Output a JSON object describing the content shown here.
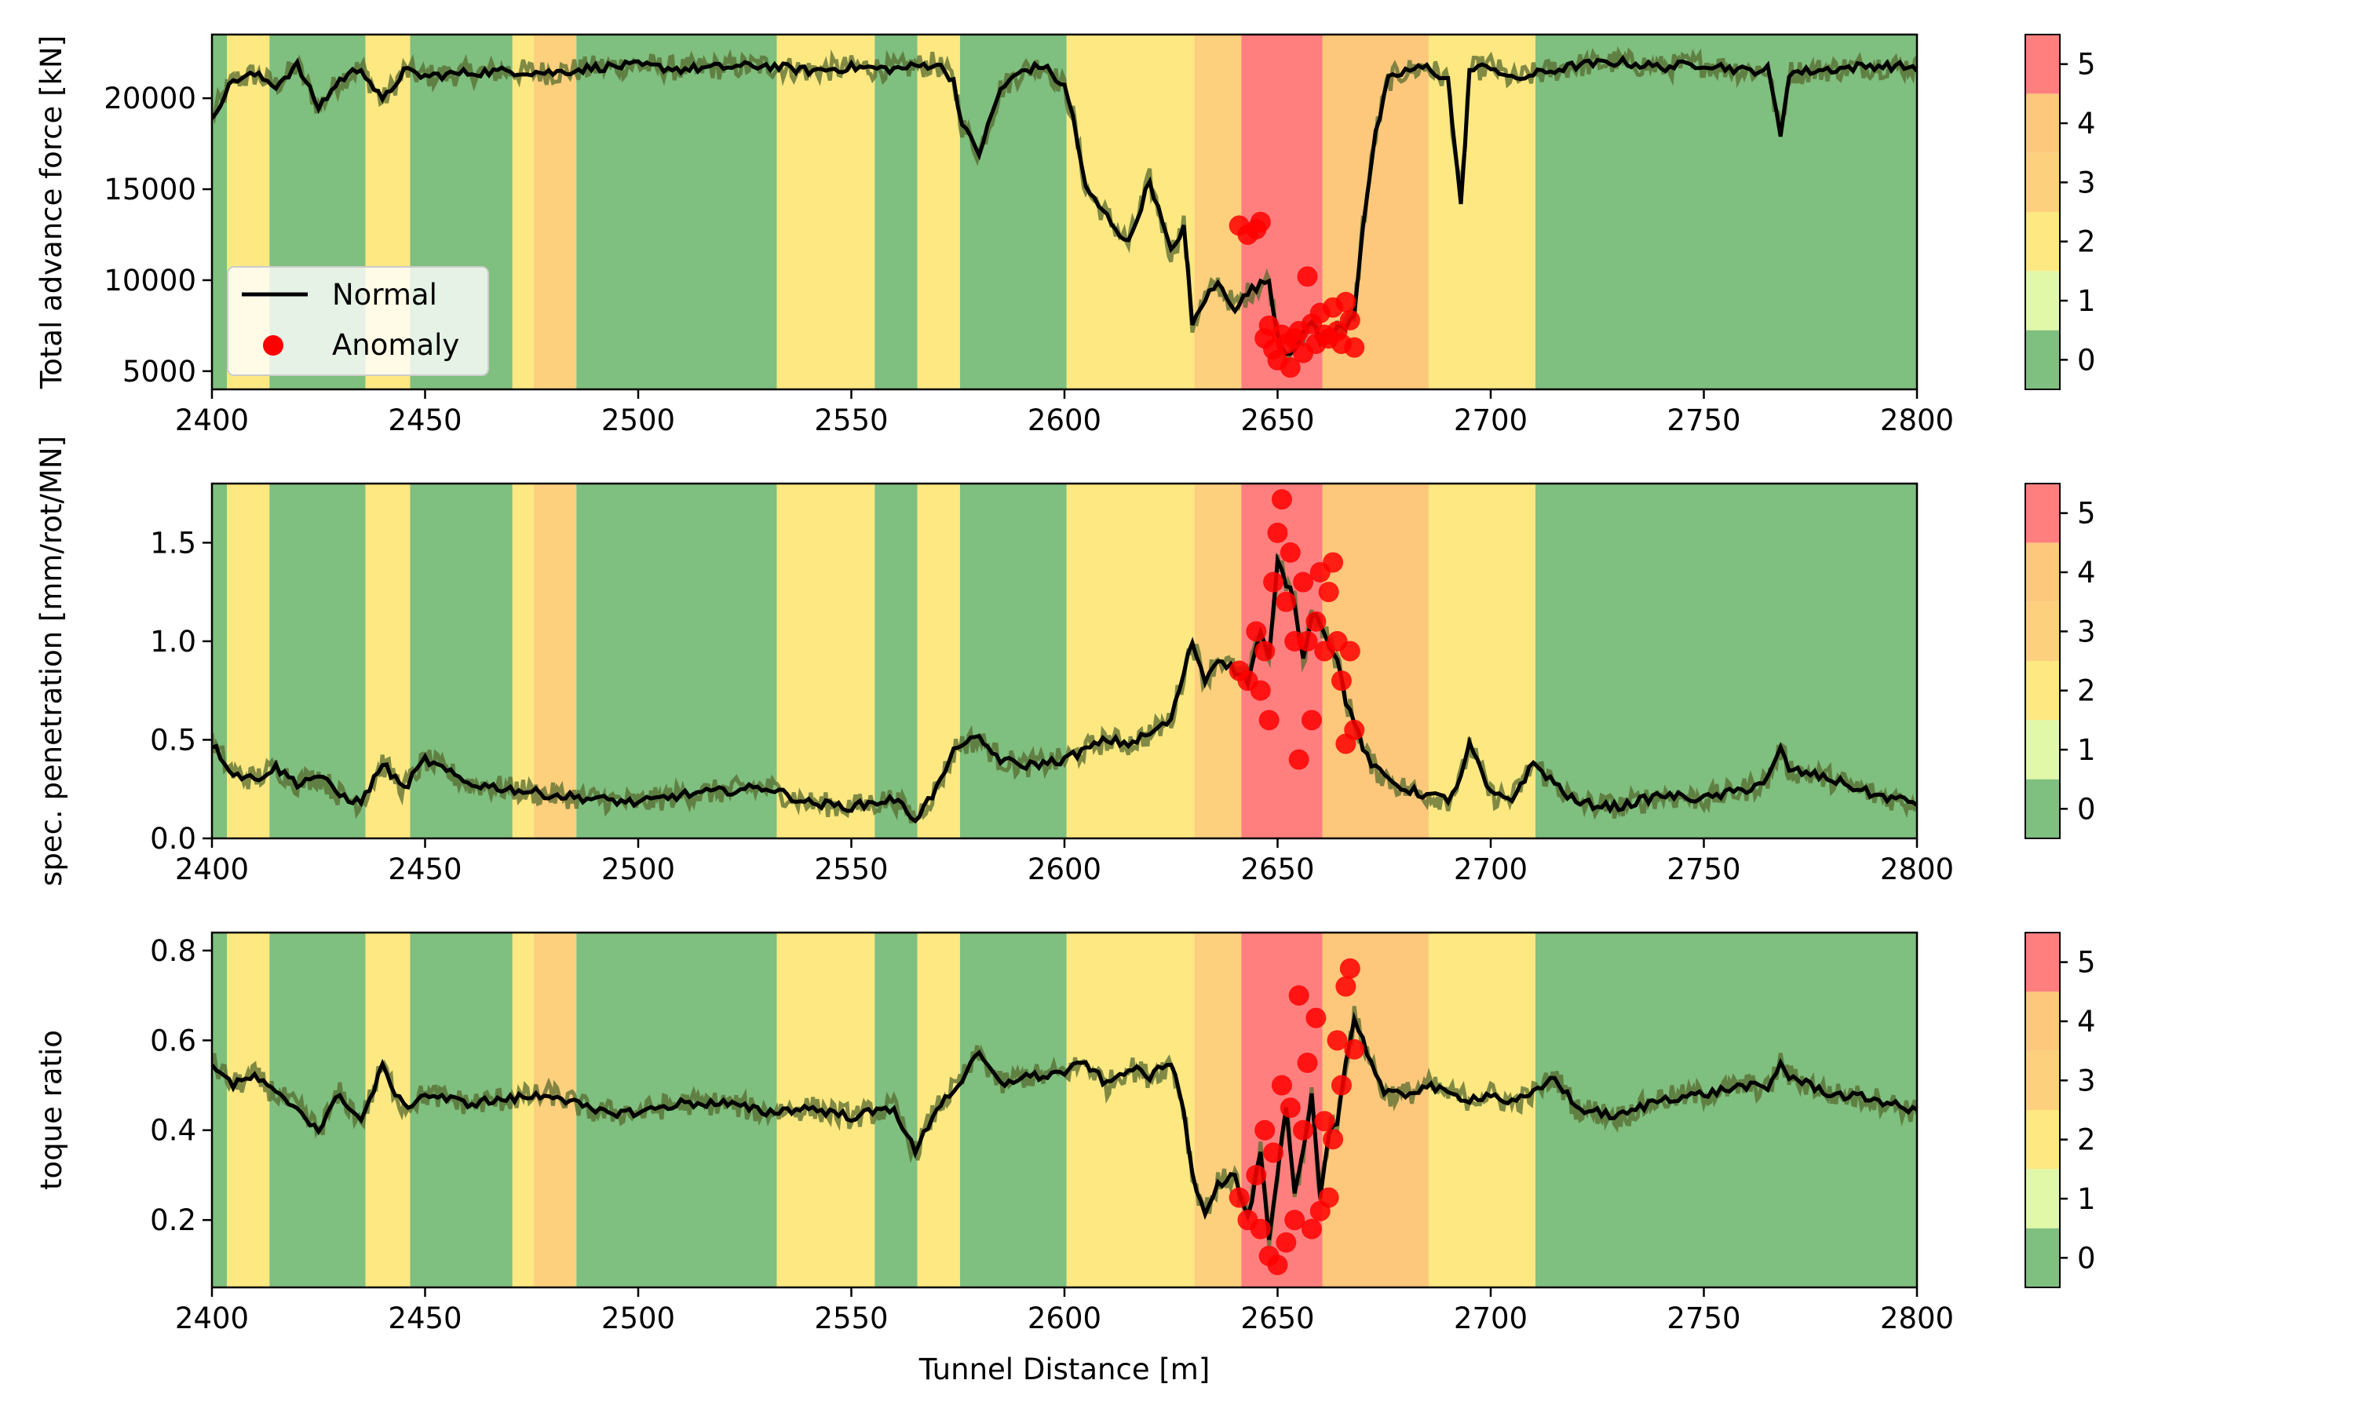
{
  "chart_data": {
    "type": "line",
    "xlabel": "Tunnel Distance [m]",
    "xlim": [
      2400,
      2800
    ],
    "x_ticks": [
      "2400",
      "2450",
      "2500",
      "2550",
      "2600",
      "2650",
      "2700",
      "2750",
      "2800"
    ],
    "legend": {
      "placement": "lower-left",
      "entries": [
        "Normal",
        "Anomaly"
      ]
    },
    "colorbar": {
      "ticks": [
        "0",
        "1",
        "2",
        "3",
        "4",
        "5"
      ],
      "colors": [
        "#7fbf7f",
        "#e0f8a8",
        "#fde882",
        "#fdd07e",
        "#fdc87c",
        "#ff7f7f"
      ]
    },
    "class_bands": [
      {
        "start": 2400,
        "end": 2403.5,
        "class": 0
      },
      {
        "start": 2403.5,
        "end": 2413.5,
        "class": 2
      },
      {
        "start": 2413.5,
        "end": 2436,
        "class": 0
      },
      {
        "start": 2436,
        "end": 2446.5,
        "class": 2
      },
      {
        "start": 2446.5,
        "end": 2470.5,
        "class": 0
      },
      {
        "start": 2470.5,
        "end": 2475.5,
        "class": 2
      },
      {
        "start": 2475.5,
        "end": 2485.5,
        "class": 3
      },
      {
        "start": 2485.5,
        "end": 2532.5,
        "class": 0
      },
      {
        "start": 2532.5,
        "end": 2555.5,
        "class": 2
      },
      {
        "start": 2555.5,
        "end": 2565.5,
        "class": 0
      },
      {
        "start": 2565.5,
        "end": 2575.5,
        "class": 2
      },
      {
        "start": 2575.5,
        "end": 2600.5,
        "class": 0
      },
      {
        "start": 2600.5,
        "end": 2630.5,
        "class": 2
      },
      {
        "start": 2630.5,
        "end": 2641.5,
        "class": 3
      },
      {
        "start": 2641.5,
        "end": 2660.5,
        "class": 5
      },
      {
        "start": 2660.5,
        "end": 2685.5,
        "class": 4
      },
      {
        "start": 2685.5,
        "end": 2710.5,
        "class": 2
      },
      {
        "start": 2710.5,
        "end": 2800,
        "class": 0
      }
    ],
    "panels": [
      {
        "ylabel": "Total advance force [kN]",
        "ylim": [
          4000,
          23500
        ],
        "y_ticks": [
          5000,
          10000,
          15000,
          20000
        ],
        "y_tick_labels": [
          "5000",
          "10000",
          "15000",
          "20000"
        ],
        "series": [
          {
            "name": "Normal",
            "x": [
              2400,
              2405,
              2410,
              2415,
              2420,
              2425,
              2430,
              2435,
              2440,
              2445,
              2450,
              2460,
              2470,
              2480,
              2490,
              2500,
              2510,
              2520,
              2530,
              2540,
              2550,
              2560,
              2570,
              2574,
              2576,
              2580,
              2585,
              2590,
              2595,
              2600,
              2602,
              2605,
              2610,
              2615,
              2620,
              2625,
              2628,
              2630,
              2633,
              2636,
              2640,
              2644,
              2648,
              2650,
              2652,
              2655,
              2658,
              2660,
              2663,
              2666,
              2668,
              2670,
              2673,
              2676,
              2680,
              2685,
              2690,
              2693,
              2695,
              2700,
              2705,
              2710,
              2720,
              2730,
              2740,
              2750,
              2760,
              2765,
              2768,
              2770,
              2780,
              2790,
              2800
            ],
            "y": [
              19000,
              21000,
              21300,
              20700,
              21800,
              19500,
              21000,
              21700,
              19800,
              21500,
              21200,
              21400,
              21500,
              21400,
              21700,
              21800,
              21600,
              21700,
              21800,
              21500,
              21700,
              21600,
              21900,
              21000,
              18500,
              17000,
              20500,
              21500,
              21800,
              20600,
              19000,
              15000,
              13500,
              12000,
              15500,
              11500,
              13000,
              7500,
              9000,
              9800,
              8500,
              9500,
              10000,
              7000,
              6000,
              6500,
              7800,
              6800,
              7200,
              7500,
              8200,
              13000,
              18000,
              21000,
              21500,
              21700,
              21000,
              14000,
              21500,
              21800,
              21000,
              21300,
              21800,
              22000,
              21700,
              21900,
              21500,
              21600,
              18000,
              21400,
              21600,
              21800,
              21700
            ]
          }
        ],
        "anomalies": {
          "x": [
            2641,
            2643,
            2645,
            2646,
            2647,
            2648,
            2649,
            2650,
            2651,
            2652,
            2653,
            2654,
            2655,
            2656,
            2657,
            2658,
            2659,
            2660,
            2661,
            2662,
            2663,
            2664,
            2665,
            2666,
            2667,
            2668
          ],
          "y": [
            13000,
            12500,
            12800,
            13200,
            6800,
            7500,
            6200,
            5600,
            7000,
            6500,
            5200,
            6800,
            7200,
            6000,
            10200,
            7600,
            6500,
            8200,
            7000,
            6800,
            8500,
            7200,
            6500,
            8800,
            7800,
            6300
          ]
        }
      },
      {
        "ylabel": "spec. penetration [mm/rot/MN]",
        "ylim": [
          0,
          1.8
        ],
        "y_ticks": [
          0.0,
          0.5,
          1.0,
          1.5
        ],
        "y_tick_labels": [
          "0.0",
          "0.5",
          "1.0",
          "1.5"
        ],
        "series": [
          {
            "name": "Normal",
            "x": [
              2400,
              2405,
              2410,
              2415,
              2420,
              2425,
              2430,
              2435,
              2440,
              2445,
              2450,
              2460,
              2470,
              2480,
              2490,
              2500,
              2510,
              2520,
              2530,
              2540,
              2550,
              2560,
              2565,
              2570,
              2575,
              2580,
              2585,
              2590,
              2595,
              2600,
              2605,
              2610,
              2615,
              2620,
              2625,
              2630,
              2633,
              2636,
              2640,
              2643,
              2646,
              2648,
              2650,
              2652,
              2654,
              2656,
              2658,
              2660,
              2662,
              2664,
              2666,
              2668,
              2670,
              2673,
              2676,
              2680,
              2685,
              2690,
              2693,
              2695,
              2700,
              2705,
              2710,
              2720,
              2730,
              2740,
              2750,
              2760,
              2765,
              2768,
              2770,
              2780,
              2790,
              2800
            ],
            "y": [
              0.48,
              0.33,
              0.3,
              0.36,
              0.28,
              0.32,
              0.22,
              0.18,
              0.38,
              0.25,
              0.4,
              0.28,
              0.25,
              0.22,
              0.2,
              0.18,
              0.22,
              0.24,
              0.26,
              0.18,
              0.16,
              0.2,
              0.1,
              0.25,
              0.48,
              0.5,
              0.4,
              0.37,
              0.38,
              0.4,
              0.45,
              0.5,
              0.48,
              0.53,
              0.6,
              1.0,
              0.8,
              0.92,
              0.85,
              0.8,
              1.05,
              0.9,
              1.4,
              1.3,
              1.2,
              0.9,
              1.15,
              1.1,
              1.0,
              0.9,
              0.7,
              0.6,
              0.45,
              0.35,
              0.3,
              0.25,
              0.22,
              0.2,
              0.3,
              0.48,
              0.22,
              0.2,
              0.38,
              0.18,
              0.16,
              0.22,
              0.2,
              0.25,
              0.3,
              0.45,
              0.35,
              0.3,
              0.22,
              0.18
            ]
          }
        ],
        "anomalies": {
          "x": [
            2641,
            2643,
            2645,
            2646,
            2647,
            2648,
            2649,
            2650,
            2651,
            2652,
            2653,
            2654,
            2655,
            2656,
            2657,
            2658,
            2659,
            2660,
            2661,
            2662,
            2663,
            2664,
            2665,
            2666,
            2667,
            2668
          ],
          "y": [
            0.85,
            0.8,
            1.05,
            0.75,
            0.95,
            0.6,
            1.3,
            1.55,
            1.72,
            1.2,
            1.45,
            1.0,
            0.4,
            1.3,
            1.0,
            0.6,
            1.1,
            1.35,
            0.95,
            1.25,
            1.4,
            1.0,
            0.8,
            0.48,
            0.95,
            0.55
          ]
        }
      },
      {
        "ylabel": "toque ratio",
        "ylim": [
          0.05,
          0.84
        ],
        "y_ticks": [
          0.2,
          0.4,
          0.6,
          0.8
        ],
        "y_tick_labels": [
          "0.2",
          "0.4",
          "0.6",
          "0.8"
        ],
        "series": [
          {
            "name": "Normal",
            "x": [
              2400,
              2405,
              2410,
              2415,
              2420,
              2425,
              2430,
              2435,
              2440,
              2445,
              2450,
              2460,
              2470,
              2480,
              2490,
              2500,
              2510,
              2520,
              2530,
              2540,
              2550,
              2560,
              2565,
              2570,
              2575,
              2580,
              2585,
              2590,
              2595,
              2600,
              2605,
              2610,
              2615,
              2620,
              2625,
              2628,
              2630,
              2633,
              2636,
              2640,
              2643,
              2646,
              2648,
              2650,
              2652,
              2654,
              2656,
              2658,
              2660,
              2662,
              2664,
              2666,
              2668,
              2670,
              2675,
              2680,
              2685,
              2690,
              2695,
              2700,
              2705,
              2710,
              2715,
              2720,
              2730,
              2740,
              2750,
              2760,
              2765,
              2768,
              2770,
              2780,
              2790,
              2800
            ],
            "y": [
              0.55,
              0.5,
              0.52,
              0.48,
              0.45,
              0.4,
              0.48,
              0.42,
              0.54,
              0.45,
              0.48,
              0.46,
              0.47,
              0.48,
              0.44,
              0.44,
              0.46,
              0.46,
              0.44,
              0.45,
              0.43,
              0.45,
              0.35,
              0.45,
              0.5,
              0.57,
              0.5,
              0.52,
              0.52,
              0.53,
              0.55,
              0.5,
              0.54,
              0.52,
              0.55,
              0.45,
              0.3,
              0.22,
              0.28,
              0.3,
              0.2,
              0.35,
              0.15,
              0.3,
              0.45,
              0.25,
              0.35,
              0.48,
              0.25,
              0.4,
              0.42,
              0.55,
              0.65,
              0.6,
              0.48,
              0.48,
              0.5,
              0.48,
              0.47,
              0.48,
              0.46,
              0.48,
              0.52,
              0.45,
              0.43,
              0.47,
              0.48,
              0.5,
              0.49,
              0.55,
              0.52,
              0.48,
              0.47,
              0.44
            ]
          }
        ],
        "anomalies": {
          "x": [
            2641,
            2643,
            2645,
            2646,
            2647,
            2648,
            2649,
            2650,
            2651,
            2652,
            2653,
            2654,
            2655,
            2656,
            2657,
            2658,
            2659,
            2660,
            2661,
            2662,
            2663,
            2664,
            2665,
            2666,
            2667,
            2668
          ],
          "y": [
            0.25,
            0.2,
            0.3,
            0.18,
            0.4,
            0.12,
            0.35,
            0.1,
            0.5,
            0.15,
            0.45,
            0.2,
            0.7,
            0.4,
            0.55,
            0.18,
            0.65,
            0.22,
            0.42,
            0.25,
            0.38,
            0.6,
            0.5,
            0.72,
            0.76,
            0.58
          ]
        }
      }
    ]
  }
}
